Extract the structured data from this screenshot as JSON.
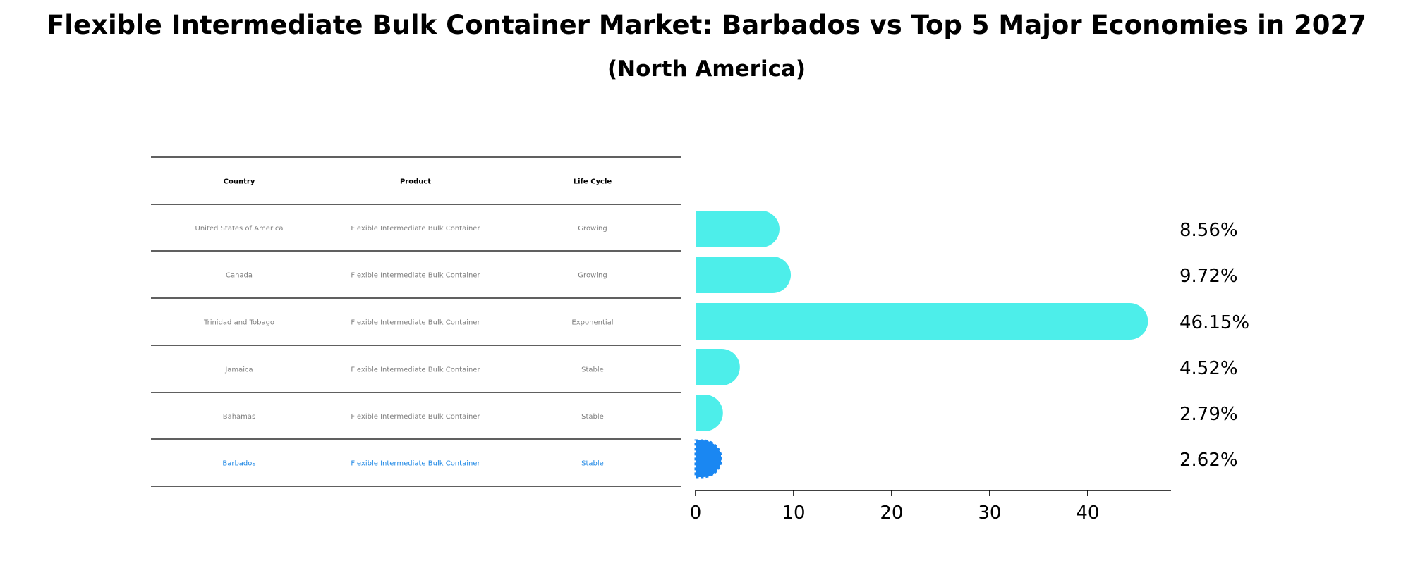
{
  "chart_data": {
    "type": "bar",
    "orientation": "horizontal",
    "title": "Flexible Intermediate Bulk Container Market: Barbados vs Top 5 Major Economies in 2027",
    "subtitle": "(North America)",
    "table": {
      "columns": [
        "Country",
        "Product",
        "Life Cycle"
      ],
      "rows": [
        [
          "United States of America",
          "Flexible Intermediate Bulk Container",
          "Growing"
        ],
        [
          "Canada",
          "Flexible Intermediate Bulk Container",
          "Growing"
        ],
        [
          "Trinidad and Tobago",
          "Flexible Intermediate Bulk Container",
          "Exponential"
        ],
        [
          "Jamaica",
          "Flexible Intermediate Bulk Container",
          "Stable"
        ],
        [
          "Bahamas",
          "Flexible Intermediate Bulk Container",
          "Stable"
        ],
        [
          "Barbados",
          "Flexible Intermediate Bulk Container",
          "Stable"
        ]
      ],
      "highlight_row": 5
    },
    "categories": [
      "United States of America",
      "Canada",
      "Trinidad and Tobago",
      "Jamaica",
      "Bahamas",
      "Barbados"
    ],
    "values": [
      8.56,
      9.72,
      46.15,
      4.52,
      2.79,
      2.62
    ],
    "value_labels": [
      "8.56%",
      "9.72%",
      "46.15%",
      "4.52%",
      "2.79%",
      "2.62%"
    ],
    "xlim": [
      0,
      48.5
    ],
    "xticks": [
      0,
      10,
      20,
      30,
      40
    ],
    "grid": false,
    "colors": {
      "bar": "#4deeea",
      "highlight": "#1a87f2",
      "table_text": "#808080",
      "table_highlight_text": "#1f88e5"
    }
  }
}
